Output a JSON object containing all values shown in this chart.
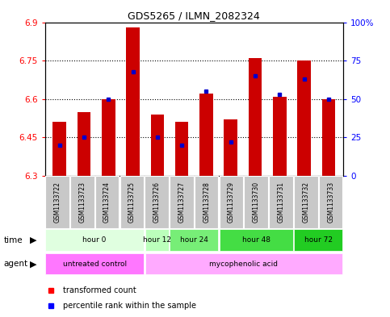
{
  "title": "GDS5265 / ILMN_2082324",
  "samples": [
    "GSM1133722",
    "GSM1133723",
    "GSM1133724",
    "GSM1133725",
    "GSM1133726",
    "GSM1133727",
    "GSM1133728",
    "GSM1133729",
    "GSM1133730",
    "GSM1133731",
    "GSM1133732",
    "GSM1133733"
  ],
  "transformed_counts": [
    6.51,
    6.55,
    6.6,
    6.88,
    6.54,
    6.51,
    6.62,
    6.52,
    6.76,
    6.61,
    6.75,
    6.6
  ],
  "percentile_ranks": [
    20,
    25,
    50,
    68,
    25,
    20,
    55,
    22,
    65,
    53,
    63,
    50
  ],
  "ylim_left": [
    6.3,
    6.9
  ],
  "ylim_right": [
    0,
    100
  ],
  "yticks_left": [
    6.3,
    6.45,
    6.6,
    6.75,
    6.9
  ],
  "yticks_right": [
    0,
    25,
    50,
    75,
    100
  ],
  "ytick_labels_left": [
    "6.3",
    "6.45",
    "6.6",
    "6.75",
    "6.9"
  ],
  "ytick_labels_right": [
    "0",
    "25",
    "50",
    "75",
    "100%"
  ],
  "bar_color": "#cc0000",
  "marker_color": "#0000cc",
  "baseline": 6.3,
  "time_groups": [
    {
      "label": "hour 0",
      "samples": [
        0,
        1,
        2,
        3
      ],
      "color": "#e0ffe0"
    },
    {
      "label": "hour 12",
      "samples": [
        4
      ],
      "color": "#bbffbb"
    },
    {
      "label": "hour 24",
      "samples": [
        5,
        6
      ],
      "color": "#77ee77"
    },
    {
      "label": "hour 48",
      "samples": [
        7,
        8,
        9
      ],
      "color": "#44dd44"
    },
    {
      "label": "hour 72",
      "samples": [
        10,
        11
      ],
      "color": "#22cc22"
    }
  ],
  "agent_groups": [
    {
      "label": "untreated control",
      "samples": [
        0,
        1,
        2,
        3
      ],
      "color": "#ff77ff"
    },
    {
      "label": "mycophenolic acid",
      "samples": [
        4,
        5,
        6,
        7,
        8,
        9,
        10,
        11
      ],
      "color": "#ffaaff"
    }
  ],
  "gsm_bg_color": "#c8c8c8",
  "bar_width": 0.55
}
